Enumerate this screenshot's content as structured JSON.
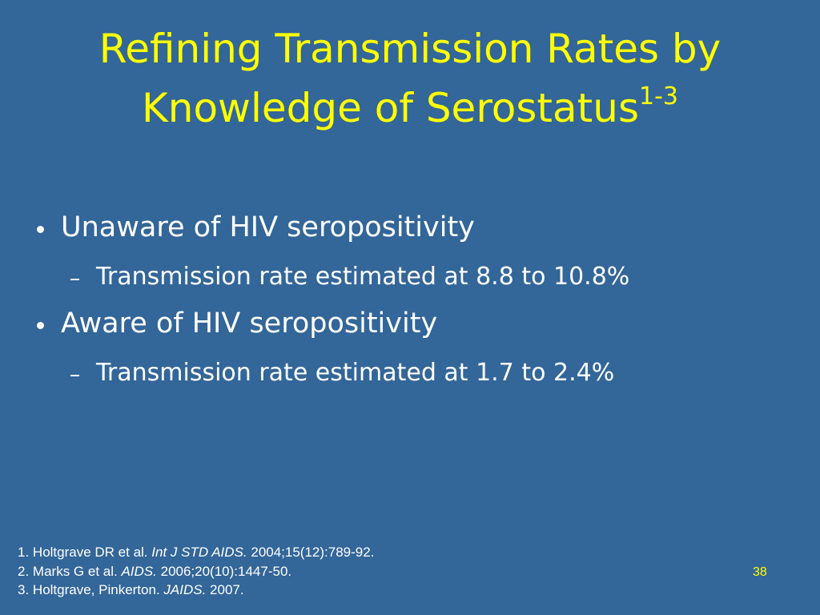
{
  "title": {
    "lines": [
      "Refining Transmission Rates by",
      "Knowledge of Serostatus"
    ],
    "superscript": "1-3"
  },
  "bullets": [
    {
      "text": "Unaware of HIV seropositivity",
      "sub": [
        "Transmission rate estimated at 8.8 to 10.8%"
      ]
    },
    {
      "text": "Aware of HIV seropositivity",
      "sub": [
        "Transmission rate estimated at 1.7 to 2.4%"
      ]
    }
  ],
  "references": [
    {
      "number": "1.",
      "authors": "Holtgrave DR et al.",
      "journal": "Int J STD AIDS.",
      "details": "2004;15(12):789-92."
    },
    {
      "number": "2.",
      "authors": "Marks G et al.",
      "journal": "AIDS.",
      "details": "2006;20(10):1447-50."
    },
    {
      "number": "3.",
      "authors": "Holtgrave, Pinkerton.",
      "journal": "JAIDS.",
      "details": "2007."
    }
  ],
  "page_number": "38"
}
